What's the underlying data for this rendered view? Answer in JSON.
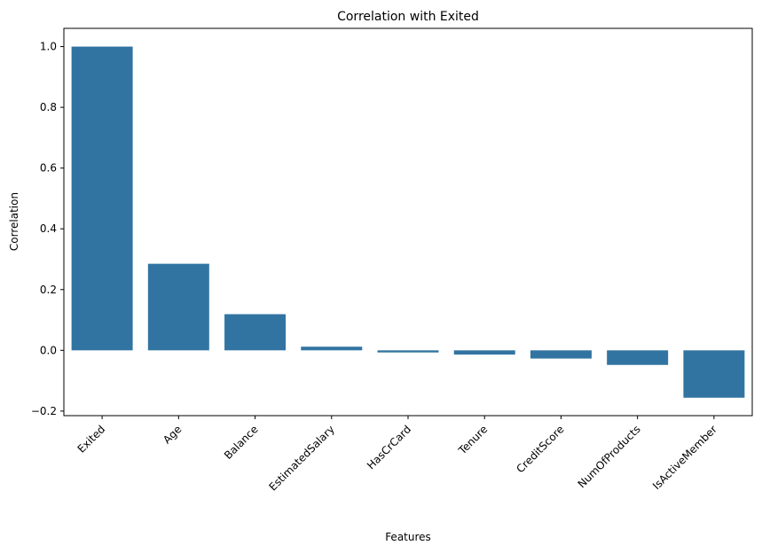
{
  "chart_data": {
    "type": "bar",
    "title": "Correlation with Exited",
    "xlabel": "Features",
    "ylabel": "Correlation",
    "categories": [
      "Exited",
      "Age",
      "Balance",
      "EstimatedSalary",
      "HasCrCard",
      "Tenure",
      "CreditScore",
      "NumOfProducts",
      "IsActiveMember"
    ],
    "values": [
      1.0,
      0.285,
      0.119,
      0.012,
      -0.007,
      -0.014,
      -0.027,
      -0.048,
      -0.156
    ],
    "ylim": [
      -0.215,
      1.06
    ],
    "yticks": [
      -0.2,
      0.0,
      0.2,
      0.4,
      0.6,
      0.8,
      1.0
    ],
    "ytick_labels": [
      "−0.2",
      "0.0",
      "0.2",
      "0.4",
      "0.6",
      "0.8",
      "1.0"
    ],
    "bar_color": "#3274a1",
    "grid": false,
    "legend": "none"
  }
}
